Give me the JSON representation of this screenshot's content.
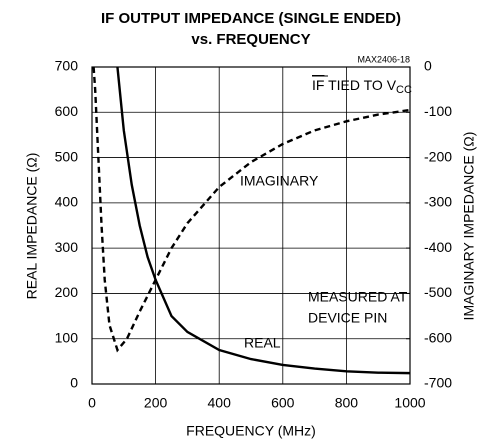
{
  "chart_data": {
    "type": "line",
    "title": [
      "IF OUTPUT IMPEDANCE (SINGLE ENDED)",
      "vs. FREQUENCY"
    ],
    "xlabel": "FREQUENCY (MHz)",
    "ylabel": "REAL IMPEDANCE (Ω)",
    "y2label": "IMAGINARY IMPEDANCE (Ω)",
    "xlim": [
      0,
      1000
    ],
    "xticks": [
      0,
      200,
      400,
      600,
      800,
      1000
    ],
    "ylim": [
      0,
      700
    ],
    "yticks": [
      0,
      100,
      200,
      300,
      400,
      500,
      600,
      700
    ],
    "y2lim": [
      -700,
      0
    ],
    "y2ticks": [
      0,
      -100,
      -200,
      -300,
      -400,
      -500,
      -600,
      -700
    ],
    "grid": true,
    "series": [
      {
        "name": "REAL",
        "color": "#000000",
        "dash": false,
        "x": [
          80,
          100,
          125,
          150,
          175,
          200,
          250,
          300,
          400,
          500,
          600,
          700,
          800,
          900,
          1000
        ],
        "values": [
          700,
          560,
          440,
          350,
          280,
          230,
          150,
          115,
          75,
          55,
          42,
          34,
          28,
          25,
          24
        ]
      },
      {
        "name": "IMAGINARY",
        "color": "#000000",
        "dash": true,
        "axis": "y2",
        "x": [
          5,
          10,
          20,
          30,
          40,
          55,
          80,
          110,
          150,
          200,
          250,
          300,
          400,
          500,
          600,
          700,
          800,
          900,
          1000
        ],
        "values": [
          0,
          -50,
          -200,
          -350,
          -470,
          -570,
          -625,
          -600,
          -540,
          -470,
          -400,
          -345,
          -265,
          -210,
          -170,
          -140,
          -120,
          -105,
          -95
        ]
      }
    ],
    "annotations": [
      "MAX2406-18",
      "IF",
      " TIED TO V",
      "CC",
      "IMAGINARY",
      "MEASURED AT",
      "DEVICE PIN",
      "REAL"
    ]
  }
}
